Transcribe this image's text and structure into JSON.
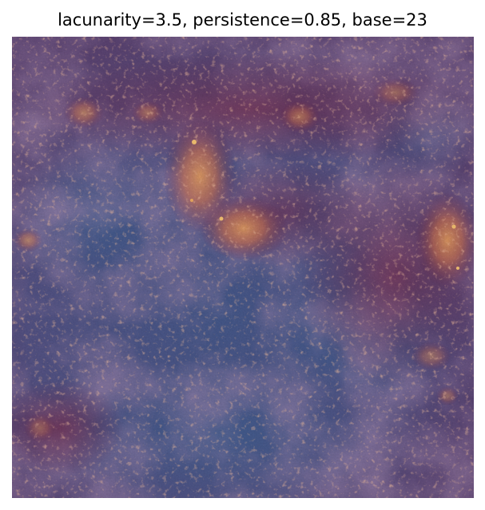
{
  "figure": {
    "title": "lacunarity=3.5, persistence=0.85, base=23"
  },
  "image": {
    "subject": "fractal-noise-texture",
    "palette": {
      "deep_blue": "#3f5a8c",
      "blue": "#4a5f92",
      "purple": "#5c3f68",
      "plum": "#6a2e5a",
      "wine": "#6e2c4e",
      "orange": "#c8704e",
      "peach": "#e09a5c",
      "highlight": "#f2c070"
    }
  }
}
